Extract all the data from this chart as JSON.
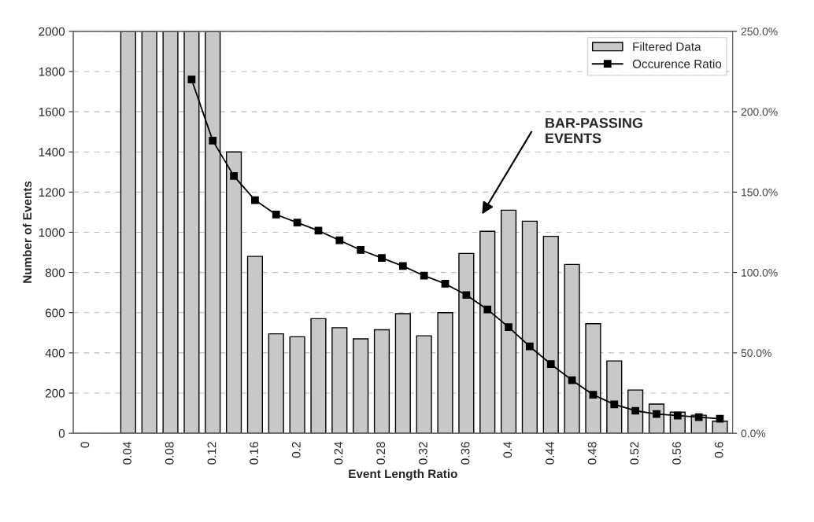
{
  "chart_data": {
    "type": "bar",
    "xlabel": "Event Length Ratio",
    "ylabel": "Number of Events",
    "categories": [
      "0",
      null,
      "0.04",
      null,
      "0.08",
      null,
      "0.12",
      null,
      "0.16",
      null,
      "0.2",
      null,
      "0.24",
      null,
      "0.28",
      null,
      "0.32",
      null,
      "0.36",
      null,
      "0.4",
      null,
      "0.44",
      null,
      "0.48",
      null,
      "0.52",
      null,
      "0.56",
      null,
      "0.6"
    ],
    "series": [
      {
        "name": "Filtered Data",
        "color": "#c8c8c8",
        "values": [
          null,
          null,
          2000,
          2000,
          2000,
          2000,
          2000,
          1400,
          880,
          495,
          480,
          570,
          525,
          470,
          515,
          595,
          485,
          600,
          895,
          1005,
          1110,
          1055,
          980,
          840,
          545,
          360,
          215,
          145,
          105,
          90,
          60
        ]
      },
      {
        "name": "Occurence Ratio",
        "type": "line",
        "axis": "y2",
        "color": "#000000",
        "marker": "square",
        "line_style": "solid",
        "values": [
          null,
          null,
          null,
          null,
          null,
          220,
          182,
          160,
          145,
          136,
          131,
          126,
          120,
          114,
          109,
          104,
          98,
          93,
          86,
          77,
          66,
          54,
          43,
          33,
          24,
          18,
          14,
          12,
          11,
          10,
          9
        ]
      }
    ],
    "ylim": [
      0,
      2000
    ],
    "yticks": [
      0,
      200,
      400,
      600,
      800,
      1000,
      1200,
      1400,
      1600,
      1800,
      2000
    ],
    "y2lim": [
      0,
      250
    ],
    "y2ticks": [
      {
        "value": 0,
        "label": "0.0%"
      },
      {
        "value": 50,
        "label": "50.0%"
      },
      {
        "value": 100,
        "label": "100.0%"
      },
      {
        "value": 150,
        "label": "150.0%"
      },
      {
        "value": 200,
        "label": "200.0%"
      },
      {
        "value": 250,
        "label": "250.0%"
      }
    ],
    "grid": "y",
    "legend": "top right",
    "annotations": [
      "BAR-PASSING\nEVENTS"
    ]
  }
}
